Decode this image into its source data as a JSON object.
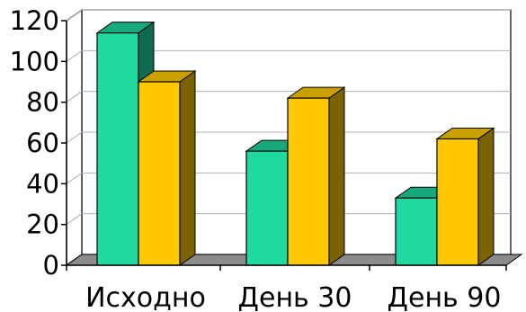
{
  "chart_data": {
    "type": "bar",
    "style": "3d-clustered-column",
    "categories": [
      "Исходно",
      "День 30",
      "День 90"
    ],
    "series": [
      {
        "values": [
          114,
          56,
          33
        ],
        "color": "#1fd9a0",
        "side_color": "#0e6b4f",
        "top_color": "#17a87b"
      },
      {
        "values": [
          90,
          82,
          62
        ],
        "color": "#ffc800",
        "side_color": "#7a6300",
        "top_color": "#c9a000"
      }
    ],
    "y_ticks": [
      "0",
      "20",
      "40",
      "60",
      "80",
      "100",
      "120"
    ],
    "ylim": [
      0,
      120
    ],
    "grid": true,
    "legend": "none",
    "title": "",
    "xlabel": "",
    "ylabel": "",
    "floor_color": "#8c8c8c",
    "grid_color": "#b0b0b0",
    "axis_color": "#000000"
  }
}
